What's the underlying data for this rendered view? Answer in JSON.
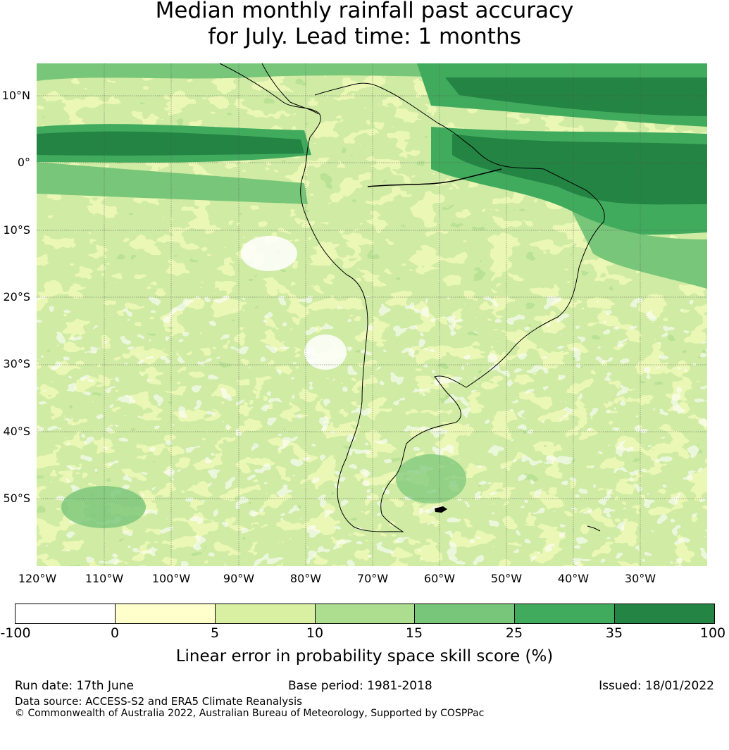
{
  "title": {
    "line1": "Median monthly rainfall past accuracy",
    "line2": "for July. Lead time: 1 months"
  },
  "map": {
    "region": "South America and surrounding oceans",
    "lat_labels": [
      "10°N",
      "0°",
      "10°S",
      "20°S",
      "30°S",
      "40°S",
      "50°S"
    ],
    "lon_labels": [
      "120°W",
      "110°W",
      "100°W",
      "90°W",
      "80°W",
      "70°W",
      "60°W",
      "50°W",
      "40°W",
      "30°W"
    ],
    "gridlines": true,
    "coastline_color": "#000000"
  },
  "colorbar": {
    "ticks": [
      "-100",
      "0",
      "5",
      "10",
      "15",
      "25",
      "35",
      "100"
    ],
    "colors": [
      "#ffffff",
      "#ffffcc",
      "#d9f0a3",
      "#addd8e",
      "#78c679",
      "#41ab5d",
      "#238443"
    ],
    "label": "Linear error in probability space skill score (%)"
  },
  "footer": {
    "run_date": "Run date: 17th June",
    "base_period": "Base period: 1981-2018",
    "issued": "Issued: 18/01/2022",
    "data_source": "Data source: ACCESS-S2 and ERA5 Climate Reanalysis",
    "copyright": "© Commonwealth of Australia 2022, Australian Bureau of Meteorology, Supported by COSPPac"
  }
}
